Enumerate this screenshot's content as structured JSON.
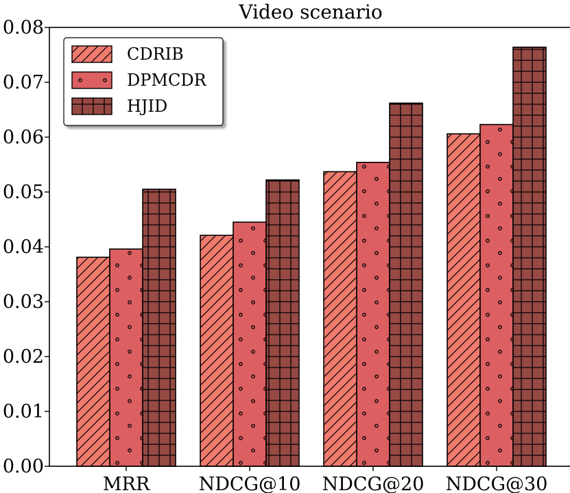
{
  "chart_data": {
    "type": "bar",
    "title": "Video scenario",
    "xlabel": "",
    "ylabel": "",
    "categories": [
      "MRR",
      "NDCG@10",
      "NDCG@20",
      "NDCG@30"
    ],
    "series": [
      {
        "name": "CDRIB",
        "values": [
          0.0381,
          0.0421,
          0.0537,
          0.0606
        ],
        "color": "#f07a6e",
        "pattern": "diagonal-hatch"
      },
      {
        "name": "DPMCDR",
        "values": [
          0.0396,
          0.0445,
          0.0554,
          0.0623
        ],
        "color": "#dc5f62",
        "pattern": "dots"
      },
      {
        "name": "HJID",
        "values": [
          0.0505,
          0.0522,
          0.0662,
          0.0764
        ],
        "color": "#974944",
        "pattern": "grid"
      }
    ],
    "ylim": [
      0,
      0.08
    ],
    "yticks": [
      "0.00",
      "0.01",
      "0.02",
      "0.03",
      "0.04",
      "0.05",
      "0.06",
      "0.07",
      "0.08"
    ],
    "ytick_values": [
      0,
      0.01,
      0.02,
      0.03,
      0.04,
      0.05,
      0.06,
      0.07,
      0.08
    ],
    "grid": false,
    "legend_position": "top-left"
  }
}
